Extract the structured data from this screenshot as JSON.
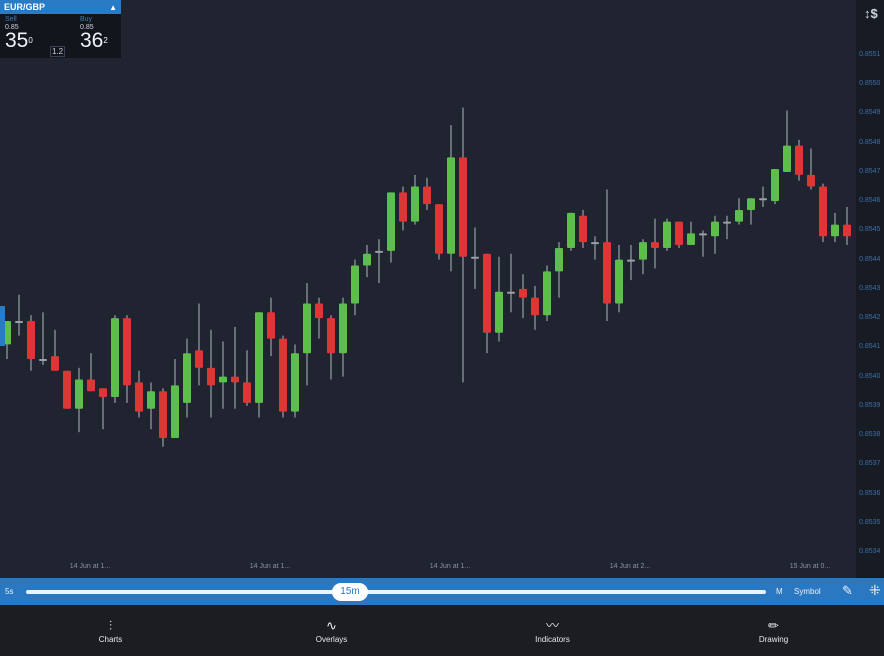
{
  "quote": {
    "symbol": "EUR/GBP",
    "collapse_icon": "triangle-up-icon",
    "sell_label": "Sell",
    "sell_prefix": "0.85",
    "sell_big": "35",
    "sell_sup": "0",
    "spread": "1.2",
    "buy_label": "Buy",
    "buy_prefix": "0.85",
    "buy_big": "36",
    "buy_sup": "2"
  },
  "axis_header": "↕$",
  "chart_data": {
    "type": "candlestick",
    "colors": {
      "up": "#5cbf4a",
      "down": "#e03535",
      "neutral": "#9aa0a8",
      "wick": "#9aa0a8"
    },
    "ylim": [
      0.85333,
      0.85521
    ],
    "y_ticks": [
      "0.8551",
      "0.8550",
      "0.8549",
      "0.8548",
      "0.8547",
      "0.8546",
      "0.8545",
      "0.8544",
      "0.8543",
      "0.8542",
      "0.8541",
      "0.8540",
      "0.8539",
      "0.8538",
      "0.8537",
      "0.8536",
      "0.8535",
      "0.8534"
    ],
    "x_labels": [
      "14 Jun at 1...",
      "14 Jun at 1...",
      "14 Jun at 1...",
      "14 Jun at 2...",
      "15 Jun at 0..."
    ],
    "ohlc": [
      [
        0.85411,
        0.85419,
        0.85406,
        0.85419
      ],
      [
        0.85419,
        0.85428,
        0.85414,
        0.85419
      ],
      [
        0.85419,
        0.85421,
        0.85402,
        0.85406
      ],
      [
        0.85406,
        0.85422,
        0.85404,
        0.85406
      ],
      [
        0.85407,
        0.85416,
        0.85402,
        0.85402
      ],
      [
        0.85402,
        0.85402,
        0.85389,
        0.85389
      ],
      [
        0.85389,
        0.85403,
        0.85381,
        0.85399
      ],
      [
        0.85399,
        0.85408,
        0.85395,
        0.85395
      ],
      [
        0.85396,
        0.85396,
        0.85382,
        0.85393
      ],
      [
        0.85393,
        0.85421,
        0.85391,
        0.8542
      ],
      [
        0.8542,
        0.85421,
        0.85391,
        0.85397
      ],
      [
        0.85398,
        0.85402,
        0.85386,
        0.85388
      ],
      [
        0.85389,
        0.85398,
        0.85382,
        0.85395
      ],
      [
        0.85395,
        0.85396,
        0.85376,
        0.85379
      ],
      [
        0.85379,
        0.85406,
        0.85379,
        0.85397
      ],
      [
        0.85391,
        0.85413,
        0.85386,
        0.85408
      ],
      [
        0.85409,
        0.85425,
        0.85397,
        0.85403
      ],
      [
        0.85403,
        0.85416,
        0.85386,
        0.85397
      ],
      [
        0.85398,
        0.85412,
        0.85389,
        0.854
      ],
      [
        0.854,
        0.85417,
        0.85389,
        0.85398
      ],
      [
        0.85398,
        0.85409,
        0.8539,
        0.85391
      ],
      [
        0.85391,
        0.85422,
        0.85386,
        0.85422
      ],
      [
        0.85422,
        0.85427,
        0.85407,
        0.85413
      ],
      [
        0.85413,
        0.85414,
        0.85386,
        0.85388
      ],
      [
        0.85388,
        0.85411,
        0.85386,
        0.85408
      ],
      [
        0.85408,
        0.85432,
        0.85397,
        0.85425
      ],
      [
        0.85425,
        0.85427,
        0.85413,
        0.8542
      ],
      [
        0.8542,
        0.85421,
        0.85399,
        0.85408
      ],
      [
        0.85408,
        0.85427,
        0.854,
        0.85425
      ],
      [
        0.85425,
        0.8544,
        0.85421,
        0.85438
      ],
      [
        0.85438,
        0.85445,
        0.85434,
        0.85442
      ],
      [
        0.85443,
        0.85447,
        0.85432,
        0.85443
      ],
      [
        0.85443,
        0.85463,
        0.85439,
        0.85463
      ],
      [
        0.85463,
        0.85465,
        0.8545,
        0.85453
      ],
      [
        0.85453,
        0.85469,
        0.85452,
        0.85465
      ],
      [
        0.85465,
        0.85468,
        0.85457,
        0.85459
      ],
      [
        0.85459,
        0.85459,
        0.8544,
        0.85442
      ],
      [
        0.85442,
        0.85486,
        0.85436,
        0.85475
      ],
      [
        0.85475,
        0.85492,
        0.85398,
        0.85441
      ],
      [
        0.85441,
        0.85451,
        0.8543,
        0.85441
      ],
      [
        0.85442,
        0.85442,
        0.85408,
        0.85415
      ],
      [
        0.85415,
        0.85441,
        0.85412,
        0.85429
      ],
      [
        0.85429,
        0.85442,
        0.85422,
        0.85429
      ],
      [
        0.8543,
        0.85435,
        0.8542,
        0.85427
      ],
      [
        0.85427,
        0.85431,
        0.85416,
        0.85421
      ],
      [
        0.85421,
        0.85438,
        0.85419,
        0.85436
      ],
      [
        0.85436,
        0.85446,
        0.85427,
        0.85444
      ],
      [
        0.85444,
        0.85456,
        0.85443,
        0.85456
      ],
      [
        0.85455,
        0.85457,
        0.85444,
        0.85446
      ],
      [
        0.85446,
        0.85448,
        0.8544,
        0.85446
      ],
      [
        0.85446,
        0.85464,
        0.85419,
        0.85425
      ],
      [
        0.85425,
        0.85445,
        0.85422,
        0.8544
      ],
      [
        0.8544,
        0.85445,
        0.85433,
        0.8544
      ],
      [
        0.8544,
        0.85447,
        0.85435,
        0.85446
      ],
      [
        0.85446,
        0.85454,
        0.85437,
        0.85444
      ],
      [
        0.85444,
        0.85454,
        0.85443,
        0.85453
      ],
      [
        0.85453,
        0.85453,
        0.85444,
        0.85445
      ],
      [
        0.85445,
        0.85453,
        0.85445,
        0.85449
      ],
      [
        0.85449,
        0.8545,
        0.85441,
        0.85449
      ],
      [
        0.85448,
        0.85455,
        0.85442,
        0.85453
      ],
      [
        0.85453,
        0.85455,
        0.85447,
        0.85453
      ],
      [
        0.85453,
        0.85461,
        0.85452,
        0.85457
      ],
      [
        0.85457,
        0.85461,
        0.85452,
        0.85461
      ],
      [
        0.85461,
        0.85465,
        0.85458,
        0.85461
      ],
      [
        0.8546,
        0.85471,
        0.85459,
        0.85471
      ],
      [
        0.8547,
        0.85491,
        0.8547,
        0.85479
      ],
      [
        0.85479,
        0.85481,
        0.85467,
        0.85469
      ],
      [
        0.85469,
        0.85478,
        0.85464,
        0.85465
      ],
      [
        0.85465,
        0.85466,
        0.85446,
        0.85448
      ],
      [
        0.85448,
        0.85456,
        0.85446,
        0.85452
      ],
      [
        0.85452,
        0.85458,
        0.85445,
        0.85448
      ]
    ]
  },
  "toolbar": {
    "left_label": "5s",
    "timeframe": "15m",
    "right_label": "M",
    "symbol_label": "Symbol",
    "draw_icon": "pen-icon",
    "layout_icon": "grid-icon"
  },
  "nav": [
    {
      "label": "Charts",
      "icon": "candlestick-icon"
    },
    {
      "label": "Overlays",
      "icon": "wave-icon"
    },
    {
      "label": "Indicators",
      "icon": "line-chart-icon"
    },
    {
      "label": "Drawing",
      "icon": "pencil-icon"
    }
  ]
}
